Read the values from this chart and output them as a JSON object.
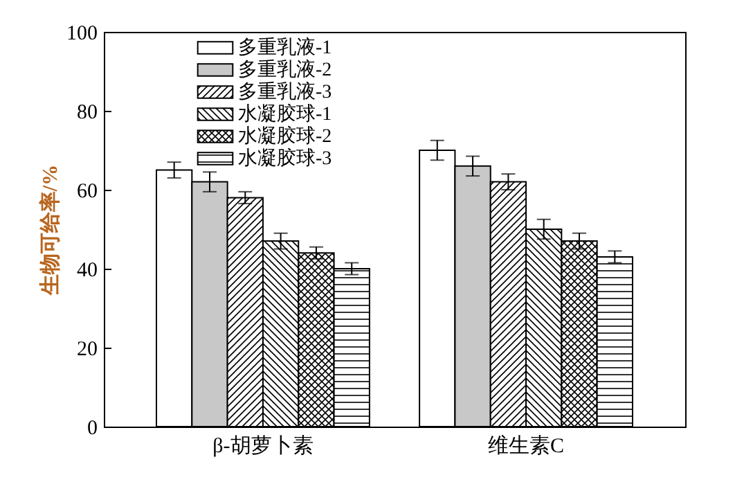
{
  "chart_data": {
    "type": "bar",
    "ylabel": "生物可给率/%",
    "categories": [
      "β-胡萝卜素",
      "维生素C"
    ],
    "series": [
      {
        "name": "多重乳液-1",
        "color": "#ffffff",
        "values": [
          65,
          70
        ],
        "errors": [
          2,
          2.5
        ]
      },
      {
        "name": "多重乳液-2",
        "color": "#c8c8c8",
        "values": [
          62,
          66
        ],
        "errors": [
          2.5,
          2.5
        ]
      },
      {
        "name": "多重乳液-3",
        "color": "#000000",
        "values": [
          58,
          62
        ],
        "errors": [
          1.5,
          2
        ]
      },
      {
        "name": "水凝胶球-1",
        "color": "#000000",
        "values": [
          47,
          50
        ],
        "errors": [
          2,
          2.5
        ]
      },
      {
        "name": "水凝胶球-2",
        "color": "#000000",
        "values": [
          44,
          47
        ],
        "errors": [
          1.5,
          2
        ]
      },
      {
        "name": "水凝胶球-3",
        "color": "#000000",
        "values": [
          40,
          43
        ],
        "errors": [
          1.5,
          1.5
        ]
      }
    ],
    "ylim": [
      0,
      100
    ],
    "yticks": [
      0,
      20,
      40,
      60,
      80,
      100
    ],
    "grid": false,
    "legend": "top"
  }
}
